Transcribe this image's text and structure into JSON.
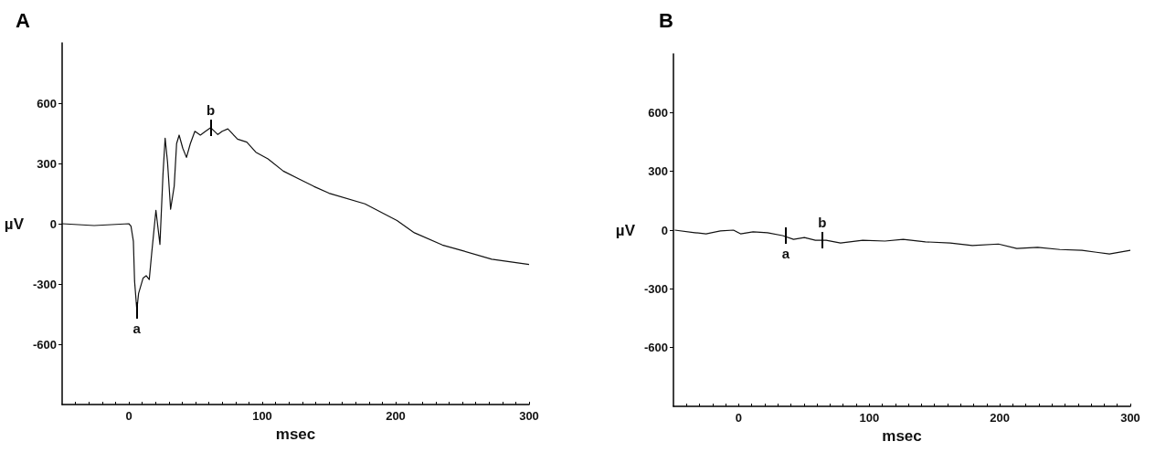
{
  "chart_data": [
    {
      "type": "line",
      "title": "A",
      "xlabel": "msec",
      "ylabel": "µV",
      "color": "#111111",
      "marker": "none",
      "line_style": "solid",
      "grid": false,
      "x": [
        -50,
        -26,
        0,
        1.6,
        3.4,
        4.3,
        6,
        7.3,
        10.7,
        13,
        15.3,
        17.1,
        20.3,
        23.3,
        25.6,
        27.2,
        29,
        31.3,
        34,
        35.8,
        37.7,
        40.4,
        43.2,
        46.1,
        49.5,
        53.6,
        57.5,
        61.4,
        66.7,
        70,
        74.2,
        81.5,
        88.4,
        95.2,
        104.3,
        115.8,
        127.2,
        138.6,
        150,
        177,
        201,
        214,
        235,
        251,
        272,
        300
      ],
      "values": [
        0,
        -9,
        0,
        -12,
        -87,
        -286,
        -430,
        -347,
        -270,
        -259,
        -278,
        -149,
        67,
        -103,
        247,
        426,
        307,
        72,
        187,
        399,
        441,
        376,
        330,
        399,
        460,
        441,
        460,
        478,
        444,
        460,
        472,
        421,
        406,
        356,
        323,
        262,
        224,
        186,
        152,
        99,
        16,
        -45,
        -106,
        -136,
        -177,
        -203
      ],
      "annotations": [
        {
          "text": "a",
          "x": 6,
          "y": -430
        },
        {
          "text": "b",
          "x": 61.4,
          "y": 478
        }
      ],
      "xlim": [
        -50,
        300
      ],
      "xticks": [
        {
          "value": -40,
          "label": null
        },
        {
          "value": -30,
          "label": null
        },
        {
          "value": -20,
          "label": null
        },
        {
          "value": -10,
          "label": null
        },
        0,
        {
          "value": 10,
          "label": null
        },
        {
          "value": 20,
          "label": null
        },
        {
          "value": 30,
          "label": null
        },
        {
          "value": 40,
          "label": null
        },
        {
          "value": 50,
          "label": null
        },
        {
          "value": 60,
          "label": null
        },
        {
          "value": 70,
          "label": null
        },
        {
          "value": 80,
          "label": null
        },
        {
          "value": 90,
          "label": null
        },
        100,
        {
          "value": 110,
          "label": null
        },
        {
          "value": 120,
          "label": null
        },
        {
          "value": 130,
          "label": null
        },
        {
          "value": 140,
          "label": null
        },
        {
          "value": 150,
          "label": null
        },
        {
          "value": 160,
          "label": null
        },
        {
          "value": 170,
          "label": null
        },
        {
          "value": 180,
          "label": null
        },
        {
          "value": 190,
          "label": null
        },
        200,
        {
          "value": 210,
          "label": null
        },
        {
          "value": 220,
          "label": null
        },
        {
          "value": 230,
          "label": null
        },
        {
          "value": 240,
          "label": null
        },
        {
          "value": 250,
          "label": null
        },
        {
          "value": 260,
          "label": null
        },
        {
          "value": 270,
          "label": null
        },
        {
          "value": 280,
          "label": null
        },
        {
          "value": 290,
          "label": null
        },
        300
      ],
      "ylim": [
        -900,
        900
      ],
      "yticks": [
        -600,
        -300,
        0,
        300,
        600
      ]
    },
    {
      "type": "line",
      "title": "B",
      "xlabel": "msec",
      "ylabel": "µV",
      "color": "#111111",
      "marker": "none",
      "line_style": "solid",
      "grid": false,
      "x": [
        -49,
        -33.6,
        -25,
        -14,
        -4,
        1.4,
        11,
        22,
        33.6,
        42,
        50.3,
        58.7,
        67,
        78,
        95,
        112,
        126,
        143,
        162,
        179,
        199,
        213,
        229,
        246,
        263,
        274,
        284,
        300
      ],
      "values": [
        0,
        -13,
        -19,
        -4,
        0,
        -19,
        -9,
        -13,
        -28,
        -47,
        -38,
        -52,
        -52,
        -66,
        -52,
        -56,
        -47,
        -60,
        -66,
        -79,
        -71,
        -94,
        -88,
        -99,
        -103,
        -113,
        -122,
        -103
      ],
      "annotations": [
        {
          "text": "a",
          "x": 36,
          "y": -30
        },
        {
          "text": "b",
          "x": 64,
          "y": -52
        }
      ],
      "xlim": [
        -50,
        300
      ],
      "xticks": [
        {
          "value": -40,
          "label": null
        },
        {
          "value": -30,
          "label": null
        },
        {
          "value": -20,
          "label": null
        },
        {
          "value": -10,
          "label": null
        },
        0,
        {
          "value": 10,
          "label": null
        },
        {
          "value": 20,
          "label": null
        },
        {
          "value": 30,
          "label": null
        },
        {
          "value": 40,
          "label": null
        },
        {
          "value": 50,
          "label": null
        },
        {
          "value": 60,
          "label": null
        },
        {
          "value": 70,
          "label": null
        },
        {
          "value": 80,
          "label": null
        },
        {
          "value": 90,
          "label": null
        },
        100,
        {
          "value": 110,
          "label": null
        },
        {
          "value": 120,
          "label": null
        },
        {
          "value": 130,
          "label": null
        },
        {
          "value": 140,
          "label": null
        },
        {
          "value": 150,
          "label": null
        },
        {
          "value": 160,
          "label": null
        },
        {
          "value": 170,
          "label": null
        },
        {
          "value": 180,
          "label": null
        },
        {
          "value": 190,
          "label": null
        },
        200,
        {
          "value": 210,
          "label": null
        },
        {
          "value": 220,
          "label": null
        },
        {
          "value": 230,
          "label": null
        },
        {
          "value": 240,
          "label": null
        },
        {
          "value": 250,
          "label": null
        },
        {
          "value": 260,
          "label": null
        },
        {
          "value": 270,
          "label": null
        },
        {
          "value": 280,
          "label": null
        },
        {
          "value": 290,
          "label": null
        },
        300
      ],
      "ylim": [
        -900,
        900
      ],
      "yticks": [
        -600,
        -300,
        0,
        300,
        600
      ]
    }
  ]
}
